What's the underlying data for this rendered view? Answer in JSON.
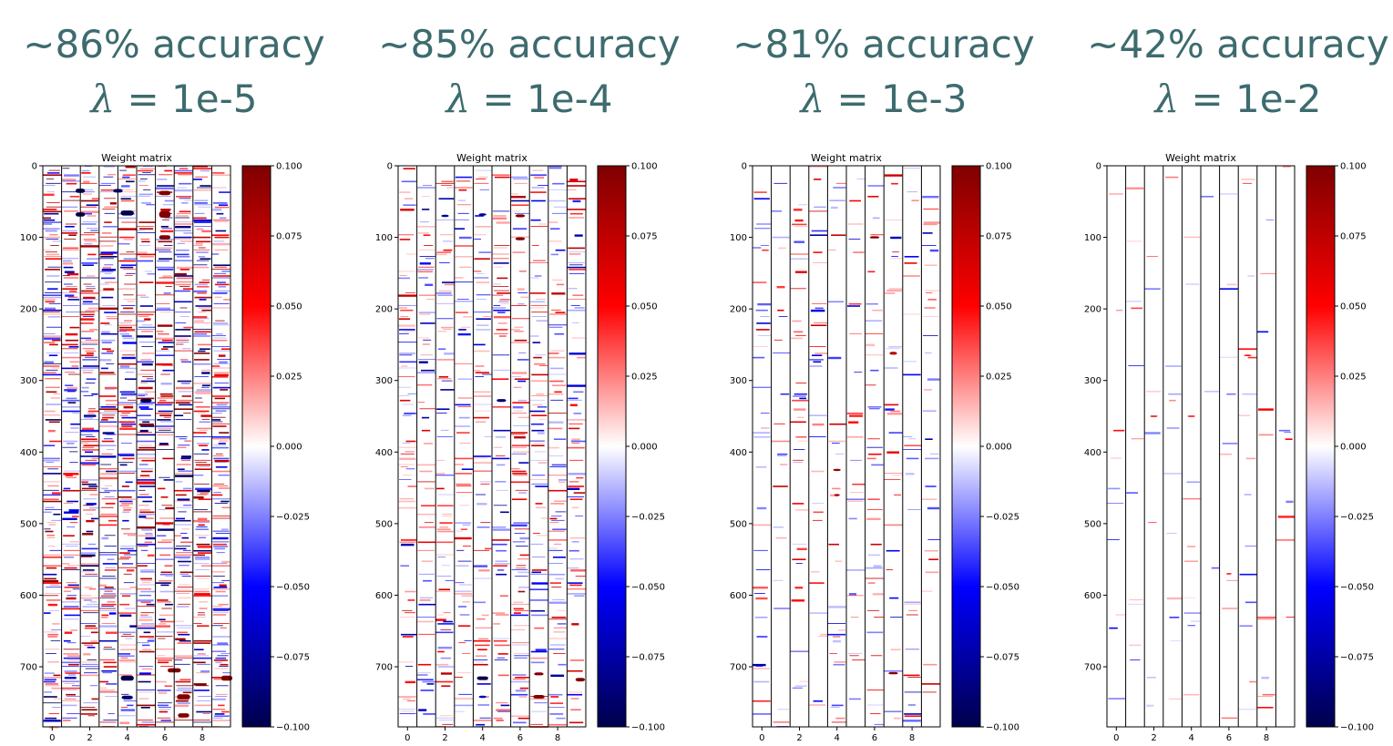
{
  "colors": {
    "heading": "#3d6b6e",
    "positive": "#b40000",
    "negative": "#0000cc",
    "cmap": "seismic"
  },
  "lambda_symbol": "λ",
  "panels": [
    {
      "accuracy": "~86% accuracy",
      "lambda_value": " = 1e-5"
    },
    {
      "accuracy": "~85% accuracy",
      "lambda_value": " = 1e-4"
    },
    {
      "accuracy": "~81% accuracy",
      "lambda_value": " = 1e-3"
    },
    {
      "accuracy": "~42% accuracy",
      "lambda_value": " = 1e-2"
    }
  ],
  "chart_data": [
    {
      "type": "heatmap",
      "title": "Weight matrix",
      "x_ticks": [
        "0",
        "2",
        "4",
        "6",
        "8"
      ],
      "x_range": [
        -0.5,
        9.5
      ],
      "y_ticks": [
        "0",
        "100",
        "200",
        "300",
        "400",
        "500",
        "600",
        "700"
      ],
      "y_range": [
        0,
        784
      ],
      "colorbar": {
        "ticks": [
          "0.100",
          "0.075",
          "0.050",
          "0.025",
          "0.000",
          "−0.025",
          "−0.050",
          "−0.075",
          "−0.100"
        ],
        "range": [
          -0.1,
          0.1
        ]
      },
      "stripe_density": 0.55,
      "stripe_scale": 1.0,
      "blobs": [
        {
          "col": 1.5,
          "row": 35,
          "value": -0.1,
          "wcols": 0.5,
          "hrows": 6
        },
        {
          "col": 3.5,
          "row": 35,
          "value": -0.09,
          "wcols": 0.5,
          "hrows": 5
        },
        {
          "col": 6,
          "row": 38,
          "value": 0.1,
          "wcols": 0.6,
          "hrows": 6
        },
        {
          "col": 1.5,
          "row": 68,
          "value": -0.1,
          "wcols": 0.5,
          "hrows": 6
        },
        {
          "col": 4,
          "row": 66,
          "value": -0.1,
          "wcols": 0.7,
          "hrows": 7
        },
        {
          "col": 6,
          "row": 68,
          "value": 0.1,
          "wcols": 0.6,
          "hrows": 9
        },
        {
          "col": 6,
          "row": 100,
          "value": 0.1,
          "wcols": 0.6,
          "hrows": 6
        },
        {
          "col": 5,
          "row": 328,
          "value": -0.1,
          "wcols": 0.6,
          "hrows": 5
        },
        {
          "col": 6.5,
          "row": 705,
          "value": 0.1,
          "wcols": 0.7,
          "hrows": 6
        },
        {
          "col": 4,
          "row": 716,
          "value": -0.1,
          "wcols": 0.7,
          "hrows": 7
        },
        {
          "col": 9.3,
          "row": 716,
          "value": 0.1,
          "wcols": 0.6,
          "hrows": 7
        },
        {
          "col": 4,
          "row": 743,
          "value": -0.09,
          "wcols": 0.6,
          "hrows": 5
        },
        {
          "col": 7,
          "row": 742,
          "value": 0.1,
          "wcols": 0.7,
          "hrows": 7
        },
        {
          "col": 7,
          "row": 768,
          "value": 0.1,
          "wcols": 0.6,
          "hrows": 6
        }
      ]
    },
    {
      "type": "heatmap",
      "title": "Weight matrix",
      "x_ticks": [
        "0",
        "2",
        "4",
        "6",
        "8"
      ],
      "x_range": [
        -0.5,
        9.5
      ],
      "y_ticks": [
        "0",
        "100",
        "200",
        "300",
        "400",
        "500",
        "600",
        "700"
      ],
      "y_range": [
        0,
        784
      ],
      "colorbar": {
        "ticks": [
          "0.100",
          "0.075",
          "0.050",
          "0.025",
          "0.000",
          "−0.025",
          "−0.050",
          "−0.075",
          "−0.100"
        ],
        "range": [
          -0.1,
          0.1
        ]
      },
      "stripe_density": 0.28,
      "stripe_scale": 0.8,
      "blobs": [
        {
          "col": 2,
          "row": 70,
          "value": -0.08,
          "wcols": 0.4,
          "hrows": 3
        },
        {
          "col": 4,
          "row": 68,
          "value": -0.08,
          "wcols": 0.4,
          "hrows": 3
        },
        {
          "col": 6,
          "row": 70,
          "value": 0.1,
          "wcols": 0.5,
          "hrows": 4
        },
        {
          "col": 6,
          "row": 102,
          "value": 0.1,
          "wcols": 0.5,
          "hrows": 4
        },
        {
          "col": 5,
          "row": 328,
          "value": -0.09,
          "wcols": 0.5,
          "hrows": 4
        },
        {
          "col": 4,
          "row": 716,
          "value": -0.1,
          "wcols": 0.6,
          "hrows": 5
        },
        {
          "col": 7,
          "row": 710,
          "value": 0.1,
          "wcols": 0.5,
          "hrows": 4
        },
        {
          "col": 9.2,
          "row": 718,
          "value": 0.1,
          "wcols": 0.5,
          "hrows": 5
        },
        {
          "col": 4,
          "row": 742,
          "value": -0.07,
          "wcols": 0.4,
          "hrows": 3
        },
        {
          "col": 7,
          "row": 742,
          "value": 0.1,
          "wcols": 0.6,
          "hrows": 5
        }
      ]
    },
    {
      "type": "heatmap",
      "title": "Weight matrix",
      "x_ticks": [
        "0",
        "2",
        "4",
        "6",
        "8"
      ],
      "x_range": [
        -0.5,
        9.5
      ],
      "y_ticks": [
        "0",
        "100",
        "200",
        "300",
        "400",
        "500",
        "600",
        "700"
      ],
      "y_range": [
        0,
        784
      ],
      "colorbar": {
        "ticks": [
          "0.100",
          "0.075",
          "0.050",
          "0.025",
          "0.000",
          "−0.025",
          "−0.050",
          "−0.075",
          "−0.100"
        ],
        "range": [
          -0.1,
          0.1
        ]
      },
      "stripe_density": 0.13,
      "stripe_scale": 0.75,
      "blobs": [
        {
          "col": 6,
          "row": 100,
          "value": 0.1,
          "wcols": 0.5,
          "hrows": 3
        },
        {
          "col": 7,
          "row": 262,
          "value": 0.08,
          "wcols": 0.4,
          "hrows": 4
        },
        {
          "col": 4,
          "row": 425,
          "value": 0.09,
          "wcols": 0.4,
          "hrows": 3
        },
        {
          "col": 4,
          "row": 460,
          "value": 0.08,
          "wcols": 0.3,
          "hrows": 3
        },
        {
          "col": 7,
          "row": 709,
          "value": 0.1,
          "wcols": 0.5,
          "hrows": 3
        }
      ]
    },
    {
      "type": "heatmap",
      "title": "Weight matrix",
      "x_ticks": [
        "0",
        "2",
        "4",
        "6",
        "8"
      ],
      "x_range": [
        -0.5,
        9.5
      ],
      "y_ticks": [
        "0",
        "100",
        "200",
        "300",
        "400",
        "500",
        "600",
        "700"
      ],
      "y_range": [
        0,
        784
      ],
      "colorbar": {
        "ticks": [
          "0.100",
          "0.075",
          "0.050",
          "0.025",
          "0.000",
          "−0.025",
          "−0.050",
          "−0.075",
          "−0.100"
        ],
        "range": [
          -0.1,
          0.1
        ]
      },
      "stripe_density": 0.04,
      "stripe_scale": 0.55,
      "blobs": [
        {
          "col": 2,
          "row": 350,
          "value": 0.06,
          "wcols": 0.4,
          "hrows": 2
        },
        {
          "col": 4,
          "row": 350,
          "value": 0.05,
          "wcols": 0.4,
          "hrows": 2
        },
        {
          "col": 7,
          "row": 265,
          "value": 0.05,
          "wcols": 0.4,
          "hrows": 2
        },
        {
          "col": 6,
          "row": 570,
          "value": 0.05,
          "wcols": 0.3,
          "hrows": 2
        }
      ]
    }
  ]
}
